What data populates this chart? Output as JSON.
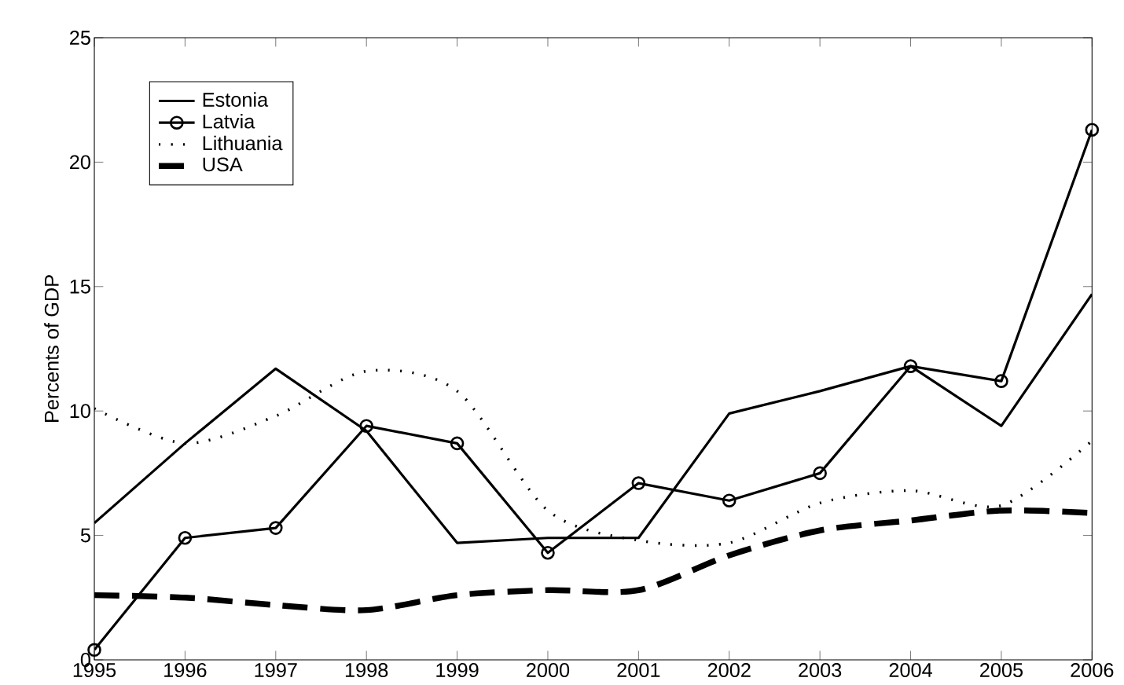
{
  "chart_data": {
    "type": "line",
    "ylabel": "Percents of GDP",
    "x": [
      1995,
      1996,
      1997,
      1998,
      1999,
      2000,
      2001,
      2002,
      2003,
      2004,
      2005,
      2006
    ],
    "xlim": [
      1995,
      2006
    ],
    "xticks": [
      1995,
      1996,
      1997,
      1998,
      1999,
      2000,
      2001,
      2002,
      2003,
      2004,
      2005,
      2006
    ],
    "ylim": [
      0,
      25
    ],
    "yticks": [
      0,
      5,
      10,
      15,
      20,
      25
    ],
    "grid": false,
    "legend": "top left",
    "series": [
      {
        "name": "Estonia",
        "color": "#000000",
        "line_style": "solid",
        "marker": "none",
        "values": [
          5.5,
          8.7,
          11.7,
          9.2,
          4.7,
          4.9,
          4.9,
          9.9,
          10.8,
          11.8,
          9.4,
          14.7
        ]
      },
      {
        "name": "Latvia",
        "color": "#000000",
        "line_style": "solid",
        "marker": "circle",
        "values": [
          0.4,
          4.9,
          5.3,
          9.4,
          8.7,
          4.3,
          7.1,
          6.4,
          7.5,
          11.8,
          11.2,
          21.3
        ]
      },
      {
        "name": "Lithuania",
        "color": "#000000",
        "line_style": "dotted",
        "marker": "none",
        "values": [
          10.1,
          8.7,
          9.8,
          11.6,
          10.8,
          6.0,
          4.8,
          4.7,
          6.3,
          6.8,
          6.2,
          8.8
        ]
      },
      {
        "name": "USA",
        "color": "#000000",
        "line_style": "dashed",
        "marker": "none",
        "values": [
          2.6,
          2.5,
          2.2,
          2.0,
          2.6,
          2.8,
          2.8,
          4.2,
          5.2,
          5.6,
          6.0,
          5.9
        ]
      }
    ]
  }
}
